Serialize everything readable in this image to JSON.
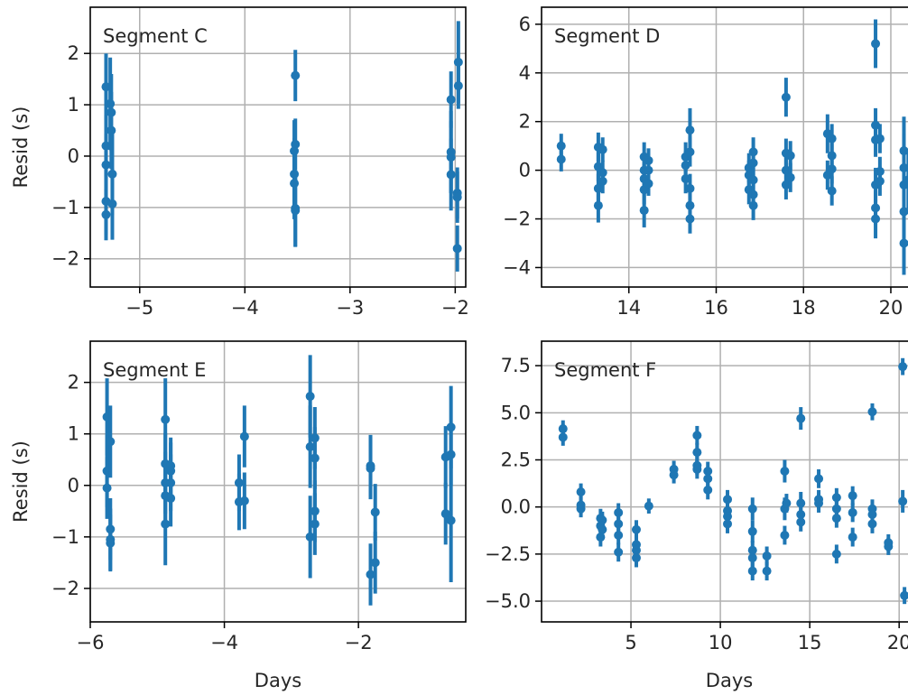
{
  "colors": {
    "series": "#1f77b4",
    "grid": "#b0b0b0",
    "axis": "#000000"
  },
  "chart_data": [
    {
      "type": "scatter",
      "error_bars": true,
      "label": "Segment C",
      "xlabel": "",
      "ylabel": "Resid (s)",
      "xlim": [
        -5.47,
        -1.9
      ],
      "ylim": [
        -2.55,
        2.9
      ],
      "xticks": [
        -5,
        -4,
        -3,
        -2
      ],
      "yticks": [
        -2,
        -1,
        0,
        1,
        2
      ],
      "grid": true,
      "points": [
        {
          "x": -5.32,
          "y": 1.35,
          "err": 0.65
        },
        {
          "x": -5.32,
          "y": 0.2,
          "err": 0.6
        },
        {
          "x": -5.32,
          "y": -0.17,
          "err": 0.6
        },
        {
          "x": -5.32,
          "y": -0.88,
          "err": 0.65
        },
        {
          "x": -5.32,
          "y": -1.14,
          "err": 0.5
        },
        {
          "x": -5.28,
          "y": 1.02,
          "err": 0.9
        },
        {
          "x": -5.27,
          "y": 0.85,
          "err": 0.75
        },
        {
          "x": -5.27,
          "y": 0.5,
          "err": 0.75
        },
        {
          "x": -5.26,
          "y": -0.35,
          "err": 0.8
        },
        {
          "x": -5.26,
          "y": -0.93,
          "err": 0.7
        },
        {
          "x": -3.52,
          "y": 1.57,
          "err": 0.5
        },
        {
          "x": -3.52,
          "y": 0.23,
          "err": 0.5
        },
        {
          "x": -3.53,
          "y": 0.1,
          "err": 0.6
        },
        {
          "x": -3.53,
          "y": -0.35,
          "err": 0.7
        },
        {
          "x": -3.53,
          "y": -0.53,
          "err": 0.7
        },
        {
          "x": -3.52,
          "y": -1.02,
          "err": 0.75
        },
        {
          "x": -3.52,
          "y": -1.06,
          "err": 0.7
        },
        {
          "x": -2.04,
          "y": 1.1,
          "err": 0.55
        },
        {
          "x": -2.04,
          "y": 0.08,
          "err": 0.8
        },
        {
          "x": -2.04,
          "y": -0.02,
          "err": 0.7
        },
        {
          "x": -2.04,
          "y": -0.36,
          "err": 0.7
        },
        {
          "x": -1.97,
          "y": 1.83,
          "err": 0.8
        },
        {
          "x": -1.97,
          "y": 1.37,
          "err": 0.45
        },
        {
          "x": -1.98,
          "y": -0.72,
          "err": 0.5
        },
        {
          "x": -1.98,
          "y": -0.8,
          "err": 0.5
        },
        {
          "x": -1.98,
          "y": -1.8,
          "err": 0.45
        }
      ]
    },
    {
      "type": "scatter",
      "error_bars": true,
      "label": "Segment D",
      "xlabel": "",
      "ylabel": "",
      "xlim": [
        12.0,
        20.6
      ],
      "ylim": [
        -4.8,
        6.7
      ],
      "xticks": [
        14,
        16,
        18,
        20
      ],
      "yticks": [
        -4,
        -2,
        0,
        2,
        4,
        6
      ],
      "grid": true,
      "points": [
        {
          "x": 12.45,
          "y": 1.0,
          "err": 0.5
        },
        {
          "x": 12.45,
          "y": 0.45,
          "err": 0.5
        },
        {
          "x": 13.3,
          "y": 0.95,
          "err": 0.6
        },
        {
          "x": 13.3,
          "y": 0.15,
          "err": 0.6
        },
        {
          "x": 13.3,
          "y": -0.75,
          "err": 0.6
        },
        {
          "x": 13.3,
          "y": -1.45,
          "err": 0.7
        },
        {
          "x": 13.4,
          "y": 0.85,
          "err": 0.5
        },
        {
          "x": 13.4,
          "y": -0.1,
          "err": 0.5
        },
        {
          "x": 13.4,
          "y": -0.45,
          "err": 0.5
        },
        {
          "x": 14.35,
          "y": 0.55,
          "err": 0.6
        },
        {
          "x": 14.35,
          "y": 0.0,
          "err": 0.6
        },
        {
          "x": 14.35,
          "y": -0.35,
          "err": 0.6
        },
        {
          "x": 14.35,
          "y": -0.8,
          "err": 0.6
        },
        {
          "x": 14.35,
          "y": -1.65,
          "err": 0.7
        },
        {
          "x": 14.45,
          "y": 0.4,
          "err": 0.5
        },
        {
          "x": 14.45,
          "y": 0.0,
          "err": 0.5
        },
        {
          "x": 14.45,
          "y": -0.55,
          "err": 0.5
        },
        {
          "x": 15.3,
          "y": 0.55,
          "err": 0.6
        },
        {
          "x": 15.3,
          "y": 0.2,
          "err": 0.6
        },
        {
          "x": 15.3,
          "y": -0.35,
          "err": 0.6
        },
        {
          "x": 15.4,
          "y": 1.65,
          "err": 0.9
        },
        {
          "x": 15.4,
          "y": 0.75,
          "err": 0.6
        },
        {
          "x": 15.4,
          "y": -0.75,
          "err": 0.6
        },
        {
          "x": 15.4,
          "y": -1.45,
          "err": 0.6
        },
        {
          "x": 15.4,
          "y": -2.0,
          "err": 0.6
        },
        {
          "x": 16.75,
          "y": 0.1,
          "err": 0.6
        },
        {
          "x": 16.75,
          "y": -0.2,
          "err": 0.6
        },
        {
          "x": 16.75,
          "y": -0.8,
          "err": 0.6
        },
        {
          "x": 16.85,
          "y": 0.75,
          "err": 0.6
        },
        {
          "x": 16.85,
          "y": 0.3,
          "err": 0.6
        },
        {
          "x": 16.85,
          "y": -0.4,
          "err": 0.6
        },
        {
          "x": 16.85,
          "y": -1.0,
          "err": 0.6
        },
        {
          "x": 16.85,
          "y": -1.45,
          "err": 0.6
        },
        {
          "x": 17.6,
          "y": 3.0,
          "err": 0.8
        },
        {
          "x": 17.6,
          "y": 0.7,
          "err": 0.6
        },
        {
          "x": 17.6,
          "y": 0.0,
          "err": 0.6
        },
        {
          "x": 17.6,
          "y": -0.6,
          "err": 0.6
        },
        {
          "x": 17.7,
          "y": 0.6,
          "err": 0.6
        },
        {
          "x": 17.7,
          "y": -0.3,
          "err": 0.6
        },
        {
          "x": 18.55,
          "y": 1.5,
          "err": 0.8
        },
        {
          "x": 18.55,
          "y": -0.2,
          "err": 0.6
        },
        {
          "x": 18.65,
          "y": 1.3,
          "err": 0.6
        },
        {
          "x": 18.65,
          "y": 0.6,
          "err": 0.6
        },
        {
          "x": 18.65,
          "y": 0.05,
          "err": 0.6
        },
        {
          "x": 18.65,
          "y": -0.85,
          "err": 0.6
        },
        {
          "x": 19.65,
          "y": 5.2,
          "err": 1.0
        },
        {
          "x": 19.65,
          "y": 1.85,
          "err": 0.7
        },
        {
          "x": 19.65,
          "y": 1.25,
          "err": 0.7
        },
        {
          "x": 19.65,
          "y": -0.6,
          "err": 0.7
        },
        {
          "x": 19.65,
          "y": -1.55,
          "err": 0.7
        },
        {
          "x": 19.65,
          "y": -2.0,
          "err": 0.8
        },
        {
          "x": 19.75,
          "y": 1.3,
          "err": 0.6
        },
        {
          "x": 19.75,
          "y": -0.05,
          "err": 0.6
        },
        {
          "x": 19.75,
          "y": -0.45,
          "err": 0.6
        },
        {
          "x": 20.3,
          "y": 0.8,
          "err": 1.4
        },
        {
          "x": 20.3,
          "y": 0.1,
          "err": 1.4
        },
        {
          "x": 20.3,
          "y": -0.6,
          "err": 1.4
        },
        {
          "x": 20.3,
          "y": -1.7,
          "err": 1.4
        },
        {
          "x": 20.3,
          "y": -3.0,
          "err": 1.3
        },
        {
          "x": 20.4,
          "y": -0.4,
          "err": 1.2
        }
      ]
    },
    {
      "type": "scatter",
      "error_bars": true,
      "label": "Segment E",
      "xlabel": "Days",
      "ylabel": "Resid (s)",
      "xlim": [
        -6.0,
        -0.4
      ],
      "ylim": [
        -2.65,
        2.8
      ],
      "xticks": [
        -6,
        -4,
        -2
      ],
      "yticks": [
        -2,
        -1,
        0,
        1,
        2
      ],
      "grid": true,
      "points": [
        {
          "x": -5.75,
          "y": 1.33,
          "err": 0.75
        },
        {
          "x": -5.75,
          "y": 0.28,
          "err": 0.7
        },
        {
          "x": -5.75,
          "y": -0.05,
          "err": 0.6
        },
        {
          "x": -5.7,
          "y": 0.85,
          "err": 0.7
        },
        {
          "x": -5.7,
          "y": -0.85,
          "err": 0.6
        },
        {
          "x": -5.7,
          "y": -1.05,
          "err": 0.6
        },
        {
          "x": -5.7,
          "y": -1.12,
          "err": 0.55
        },
        {
          "x": -4.88,
          "y": 1.28,
          "err": 0.8
        },
        {
          "x": -4.88,
          "y": 0.42,
          "err": 0.6
        },
        {
          "x": -4.88,
          "y": 0.05,
          "err": 0.6
        },
        {
          "x": -4.88,
          "y": -0.2,
          "err": 0.6
        },
        {
          "x": -4.88,
          "y": -0.75,
          "err": 0.8
        },
        {
          "x": -4.8,
          "y": 0.38,
          "err": 0.55
        },
        {
          "x": -4.8,
          "y": 0.28,
          "err": 0.55
        },
        {
          "x": -4.8,
          "y": 0.05,
          "err": 0.55
        },
        {
          "x": -4.8,
          "y": -0.25,
          "err": 0.55
        },
        {
          "x": -3.78,
          "y": 0.05,
          "err": 0.55
        },
        {
          "x": -3.78,
          "y": -0.32,
          "err": 0.55
        },
        {
          "x": -3.7,
          "y": 0.95,
          "err": 0.6
        },
        {
          "x": -3.7,
          "y": -0.3,
          "err": 0.55
        },
        {
          "x": -2.72,
          "y": 1.73,
          "err": 0.8
        },
        {
          "x": -2.72,
          "y": 0.75,
          "err": 0.8
        },
        {
          "x": -2.72,
          "y": -1.0,
          "err": 0.8
        },
        {
          "x": -2.65,
          "y": 0.92,
          "err": 0.6
        },
        {
          "x": -2.65,
          "y": 0.53,
          "err": 0.6
        },
        {
          "x": -2.65,
          "y": -0.5,
          "err": 0.6
        },
        {
          "x": -2.65,
          "y": -0.75,
          "err": 0.6
        },
        {
          "x": -1.82,
          "y": 0.38,
          "err": 0.6
        },
        {
          "x": -1.82,
          "y": 0.33,
          "err": 0.6
        },
        {
          "x": -1.82,
          "y": -1.73,
          "err": 0.6
        },
        {
          "x": -1.75,
          "y": -0.52,
          "err": 0.55
        },
        {
          "x": -1.75,
          "y": -1.5,
          "err": 0.6
        },
        {
          "x": -0.7,
          "y": 0.55,
          "err": 0.6
        },
        {
          "x": -0.7,
          "y": -0.55,
          "err": 0.6
        },
        {
          "x": -0.62,
          "y": 1.13,
          "err": 0.8
        },
        {
          "x": -0.62,
          "y": 0.6,
          "err": 0.6
        },
        {
          "x": -0.62,
          "y": -0.68,
          "err": 1.2
        }
      ]
    },
    {
      "type": "scatter",
      "error_bars": true,
      "label": "Segment F",
      "xlabel": "Days",
      "ylabel": "",
      "xlim": [
        0.0,
        21.0
      ],
      "ylim": [
        -6.1,
        8.8
      ],
      "xticks": [
        5,
        10,
        15,
        20
      ],
      "yticks": [
        -5.0,
        -2.5,
        0.0,
        2.5,
        5.0,
        7.5
      ],
      "ytick_labels": [
        "−5.0",
        "−2.5",
        "0.0",
        "2.5",
        "5.0",
        "7.5"
      ],
      "grid": true,
      "points": [
        {
          "x": 1.2,
          "y": 4.15,
          "err": 0.45
        },
        {
          "x": 1.2,
          "y": 3.7,
          "err": 0.45
        },
        {
          "x": 2.2,
          "y": 0.8,
          "err": 0.45
        },
        {
          "x": 2.2,
          "y": 0.1,
          "err": 0.45
        },
        {
          "x": 2.2,
          "y": -0.1,
          "err": 0.45
        },
        {
          "x": 3.3,
          "y": -0.6,
          "err": 0.5
        },
        {
          "x": 3.3,
          "y": -1.0,
          "err": 0.5
        },
        {
          "x": 3.3,
          "y": -1.6,
          "err": 0.5
        },
        {
          "x": 3.4,
          "y": -0.7,
          "err": 0.45
        },
        {
          "x": 3.4,
          "y": -1.2,
          "err": 0.45
        },
        {
          "x": 4.3,
          "y": -0.3,
          "err": 0.5
        },
        {
          "x": 4.3,
          "y": -0.9,
          "err": 0.5
        },
        {
          "x": 4.3,
          "y": -1.5,
          "err": 0.5
        },
        {
          "x": 4.3,
          "y": -2.4,
          "err": 0.5
        },
        {
          "x": 5.3,
          "y": -1.2,
          "err": 0.5
        },
        {
          "x": 5.3,
          "y": -2.0,
          "err": 0.5
        },
        {
          "x": 5.3,
          "y": -2.3,
          "err": 0.5
        },
        {
          "x": 5.3,
          "y": -2.7,
          "err": 0.5
        },
        {
          "x": 6.0,
          "y": 0.05,
          "err": 0.4
        },
        {
          "x": 7.4,
          "y": 2.0,
          "err": 0.45
        },
        {
          "x": 7.4,
          "y": 1.7,
          "err": 0.45
        },
        {
          "x": 8.7,
          "y": 3.8,
          "err": 0.5
        },
        {
          "x": 8.7,
          "y": 2.9,
          "err": 0.5
        },
        {
          "x": 8.7,
          "y": 2.2,
          "err": 0.5
        },
        {
          "x": 8.7,
          "y": 2.0,
          "err": 0.5
        },
        {
          "x": 9.3,
          "y": 1.9,
          "err": 0.5
        },
        {
          "x": 9.3,
          "y": 1.5,
          "err": 0.5
        },
        {
          "x": 9.3,
          "y": 0.9,
          "err": 0.5
        },
        {
          "x": 10.4,
          "y": 0.4,
          "err": 0.5
        },
        {
          "x": 10.4,
          "y": -0.2,
          "err": 0.5
        },
        {
          "x": 10.4,
          "y": -0.5,
          "err": 0.5
        },
        {
          "x": 10.4,
          "y": -0.9,
          "err": 0.5
        },
        {
          "x": 11.8,
          "y": -0.1,
          "err": 0.6
        },
        {
          "x": 11.8,
          "y": -1.3,
          "err": 0.6
        },
        {
          "x": 11.8,
          "y": -2.3,
          "err": 0.5
        },
        {
          "x": 11.8,
          "y": -2.7,
          "err": 0.5
        },
        {
          "x": 11.8,
          "y": -3.4,
          "err": 0.5
        },
        {
          "x": 12.6,
          "y": -2.6,
          "err": 0.5
        },
        {
          "x": 12.6,
          "y": -3.4,
          "err": 0.5
        },
        {
          "x": 13.6,
          "y": 1.9,
          "err": 0.6
        },
        {
          "x": 13.6,
          "y": -0.1,
          "err": 0.6
        },
        {
          "x": 13.6,
          "y": -1.5,
          "err": 0.5
        },
        {
          "x": 13.7,
          "y": 0.2,
          "err": 0.5
        },
        {
          "x": 14.5,
          "y": 4.7,
          "err": 0.6
        },
        {
          "x": 14.5,
          "y": 0.2,
          "err": 0.6
        },
        {
          "x": 14.5,
          "y": -0.4,
          "err": 0.6
        },
        {
          "x": 14.5,
          "y": -0.8,
          "err": 0.5
        },
        {
          "x": 15.5,
          "y": 1.5,
          "err": 0.5
        },
        {
          "x": 15.5,
          "y": 0.4,
          "err": 0.5
        },
        {
          "x": 15.5,
          "y": 0.2,
          "err": 0.5
        },
        {
          "x": 16.5,
          "y": 0.5,
          "err": 0.5
        },
        {
          "x": 16.5,
          "y": -0.1,
          "err": 0.5
        },
        {
          "x": 16.5,
          "y": -0.6,
          "err": 0.5
        },
        {
          "x": 16.5,
          "y": -2.5,
          "err": 0.5
        },
        {
          "x": 17.4,
          "y": 0.6,
          "err": 0.5
        },
        {
          "x": 17.4,
          "y": -0.3,
          "err": 0.5
        },
        {
          "x": 17.4,
          "y": -1.6,
          "err": 0.5
        },
        {
          "x": 18.5,
          "y": 5.05,
          "err": 0.45
        },
        {
          "x": 18.5,
          "y": -0.1,
          "err": 0.5
        },
        {
          "x": 18.5,
          "y": -0.4,
          "err": 0.5
        },
        {
          "x": 18.5,
          "y": -0.9,
          "err": 0.5
        },
        {
          "x": 19.4,
          "y": -1.9,
          "err": 0.45
        },
        {
          "x": 19.4,
          "y": -2.1,
          "err": 0.45
        },
        {
          "x": 20.2,
          "y": 7.45,
          "err": 0.45
        },
        {
          "x": 20.2,
          "y": 0.3,
          "err": 0.6
        },
        {
          "x": 20.3,
          "y": -4.7,
          "err": 0.45
        }
      ]
    }
  ]
}
